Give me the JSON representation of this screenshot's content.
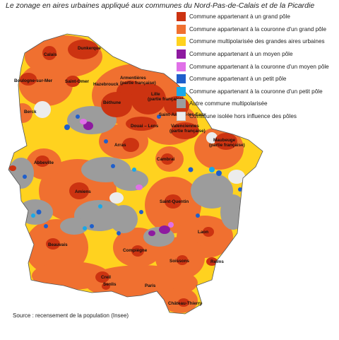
{
  "title": "Le zonage en aires urbaines appliqué aux communes du Nord-Pas-de-Calais et de la Picardie",
  "source": "Source : recensement de la population (Insee)",
  "legend": [
    {
      "label": "Commune appartenant à un grand pôle",
      "color": "#cc3311"
    },
    {
      "label": "Commune appartenant à la couronne d'un grand pôle",
      "color": "#f07030"
    },
    {
      "label": "Commune multipolarisée des grandes aires urbaines",
      "color": "#ffd21f"
    },
    {
      "label": "Commune appartenant à un moyen pôle",
      "color": "#8e1aa0"
    },
    {
      "label": "Commune appartenant à la couronne d'un moyen pôle",
      "color": "#e070e8"
    },
    {
      "label": "Commune appartenant à un petit pôle",
      "color": "#1f5fcc"
    },
    {
      "label": "Commune appartenant à la couronne d'un petit pôle",
      "color": "#1aa8e8"
    },
    {
      "label": "Autre commune multipolarisée",
      "color": "#9c9c9c"
    },
    {
      "label": "Commune isolée hors influence des pôles",
      "color": "#ececec"
    }
  ],
  "cities": [
    {
      "name": "Dunkerque"
    },
    {
      "name": "Calais"
    },
    {
      "name": "Boulogne-sur-Mer"
    },
    {
      "name": "Saint-Omer"
    },
    {
      "name": "Hazebrouck"
    },
    {
      "name": "Armentières"
    },
    {
      "name": "(partie française)"
    },
    {
      "name": "Lille"
    },
    {
      "name": "(partie française)"
    },
    {
      "name": "Béthune"
    },
    {
      "name": "Berck"
    },
    {
      "name": "Saint-Amand-les-Eaux"
    },
    {
      "name": "Douai – Lens"
    },
    {
      "name": "Valenciennes"
    },
    {
      "name": "(partie française)"
    },
    {
      "name": "Maubeuge"
    },
    {
      "name": "(partie française)"
    },
    {
      "name": "Arras"
    },
    {
      "name": "Cambrai"
    },
    {
      "name": "Abbeville"
    },
    {
      "name": "Amiens"
    },
    {
      "name": "Saint-Quentin"
    },
    {
      "name": "Laon"
    },
    {
      "name": "Beauvais"
    },
    {
      "name": "Compiègne"
    },
    {
      "name": "Soissons"
    },
    {
      "name": "Reims"
    },
    {
      "name": "Creil"
    },
    {
      "name": "Senlis"
    },
    {
      "name": "Paris"
    },
    {
      "name": "Château-Thierry"
    }
  ]
}
